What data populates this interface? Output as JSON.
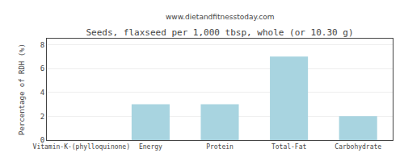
{
  "chart_data": {
    "type": "bar",
    "title": "Seeds, flaxseed per 1,000 tbsp, whole (or 10.30 g)",
    "subtitle": "www.dietandfitnesstoday.com",
    "categories": [
      "Vitamin-K-(phylloquinone)",
      "Energy",
      "Protein",
      "Total-Fat",
      "Carbohydrate"
    ],
    "values": [
      0,
      3.0,
      3.0,
      7.0,
      2.0
    ],
    "color": "#a8d4e0",
    "ylabel": "Percentage of RDH (%)",
    "ylim": [
      0,
      8.5
    ],
    "yticks": [
      0,
      2,
      4,
      6,
      8
    ],
    "grid": true
  }
}
